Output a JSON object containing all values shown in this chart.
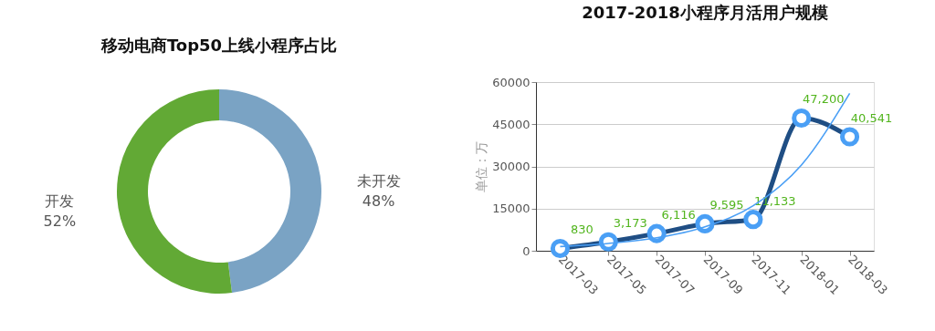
{
  "chart_data": [
    {
      "type": "donut",
      "title": "移动电商Top50上线小程序占比",
      "categories": [
        "未开发",
        "开发"
      ],
      "values": [
        48,
        52
      ],
      "colors": [
        "#7aa3c4",
        "#62a935"
      ],
      "value_labels": [
        "48%",
        "52%"
      ]
    },
    {
      "type": "line",
      "title": "2017-2018小程序月活用户规模",
      "ylabel": "单位：万",
      "categories": [
        "2017-03",
        "2017-05",
        "2017-07",
        "2017-09",
        "2017-11",
        "2018-01",
        "2018-03"
      ],
      "series": [
        {
          "color": "#1f4e84",
          "values": [
            830,
            3173,
            6116,
            9595,
            11133,
            47200,
            40541
          ],
          "marker": "circle",
          "value_labels": [
            "830",
            "3,173",
            "6,116",
            "9,595",
            "11,133",
            "47,200",
            "40,541"
          ]
        },
        {
          "color": "#4a9ff5",
          "values": [
            1500,
            2600,
            4600,
            8500,
            16000,
            30500,
            56000
          ],
          "marker": "none"
        }
      ],
      "ylim": [
        0,
        60000
      ],
      "yticks": [
        0,
        15000,
        30000,
        45000,
        60000
      ],
      "grid": "y"
    }
  ]
}
